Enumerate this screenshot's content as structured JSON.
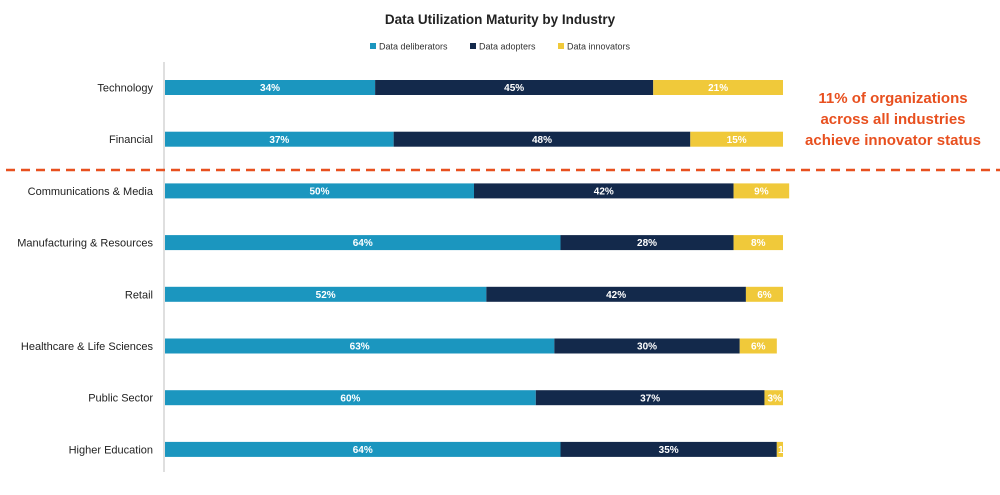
{
  "chart_data": {
    "type": "bar",
    "orientation": "horizontal",
    "stacked": true,
    "title": "Data Utilization Maturity by Industry",
    "legend_position": "top",
    "xlim": [
      0,
      100
    ],
    "categories": [
      "Technology",
      "Financial",
      "Communications & Media",
      "Manufacturing & Resources",
      "Retail",
      "Healthcare & Life Sciences",
      "Public Sector",
      "Higher Education"
    ],
    "series": [
      {
        "name": "Data deliberators",
        "color": "#1b96bf",
        "values": [
          34,
          37,
          50,
          64,
          52,
          63,
          60,
          64
        ],
        "labels": [
          "34%",
          "37%",
          "50%",
          "64%",
          "52%",
          "63%",
          "60%",
          "64%"
        ]
      },
      {
        "name": "Data adopters",
        "color": "#13294b",
        "values": [
          45,
          48,
          42,
          28,
          42,
          30,
          37,
          35
        ],
        "labels": [
          "45%",
          "48%",
          "42%",
          "28%",
          "42%",
          "30%",
          "37%",
          "35%"
        ]
      },
      {
        "name": "Data innovators",
        "color": "#f0c93a",
        "values": [
          21,
          15,
          9,
          8,
          6,
          6,
          3,
          1
        ],
        "labels": [
          "21%",
          "15%",
          "9%",
          "8%",
          "6%",
          "6%",
          "3%",
          "1"
        ]
      }
    ],
    "annotation": "11% of organizations across all industries achieve innovator status",
    "annotation_lines": [
      "11% of organizations",
      "across all industries",
      "achieve innovator status"
    ],
    "annotation_color": "#e8501f",
    "divider_color": "#e8501f"
  }
}
